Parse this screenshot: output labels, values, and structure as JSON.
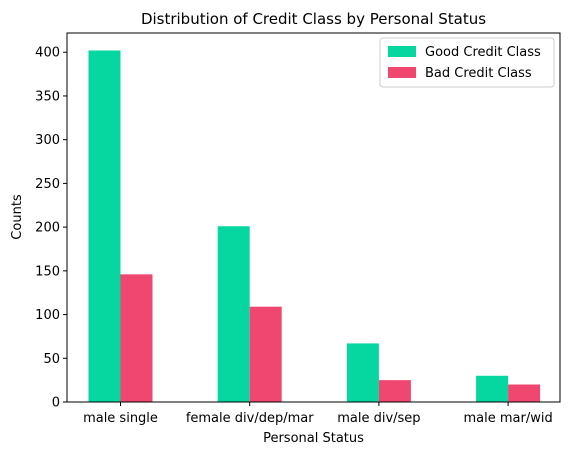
{
  "chart_data": {
    "type": "bar",
    "title": "Distribution of Credit Class by Personal Status",
    "xlabel": "Personal Status",
    "ylabel": "Counts",
    "categories": [
      "male single",
      "female div/dep/mar",
      "male div/sep",
      "male mar/wid"
    ],
    "series": [
      {
        "name": "Good Credit Class",
        "color": "#06d6a0",
        "values": [
          402,
          201,
          67,
          30
        ]
      },
      {
        "name": "Bad Credit Class",
        "color": "#ef476f",
        "values": [
          146,
          109,
          25,
          20
        ]
      }
    ],
    "ylim": [
      0,
      422
    ],
    "yticks": [
      0,
      50,
      100,
      150,
      200,
      250,
      300,
      350,
      400
    ],
    "grid": false,
    "legend_position": "top-right"
  }
}
